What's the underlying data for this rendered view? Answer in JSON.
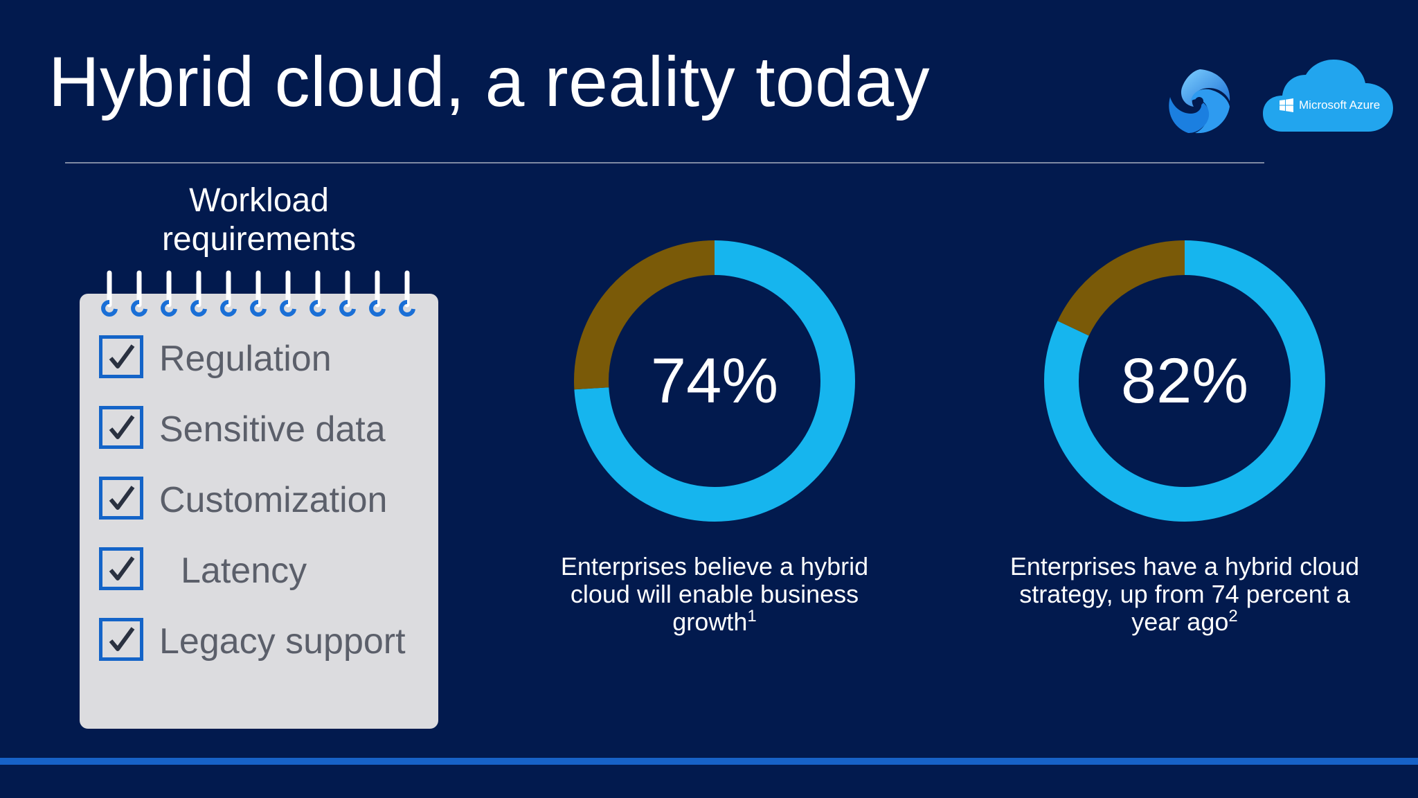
{
  "slide": {
    "title": "Hybrid cloud, a reality today"
  },
  "logos": {
    "swirl_icon": "swirl-logo-icon",
    "azure_label": "Microsoft Azure",
    "azure_color": "#22a5ee"
  },
  "workload": {
    "heading": "Workload requirements",
    "items": [
      {
        "label": "Regulation",
        "checked": true
      },
      {
        "label": "Sensitive data",
        "checked": true
      },
      {
        "label": "Customization",
        "checked": true
      },
      {
        "label": "Latency",
        "checked": true
      },
      {
        "label": "Legacy support",
        "checked": true
      }
    ]
  },
  "colors": {
    "background": "#021a4e",
    "primary_segment": "#16b5ee",
    "remainder_segment": "#7a5a08",
    "notepad": "#dcdcdf",
    "checkbox_border": "#1464c8"
  },
  "chart_data": [
    {
      "type": "pie",
      "style": "donut",
      "value_label": "74%",
      "values": [
        74,
        26
      ],
      "caption": "Enterprises believe a hybrid cloud will enable business growth",
      "footnote": "1"
    },
    {
      "type": "pie",
      "style": "donut",
      "value_label": "82%",
      "values": [
        82,
        18
      ],
      "caption": "Enterprises have a hybrid cloud strategy, up from 74 percent a year ago",
      "footnote": "2"
    }
  ]
}
